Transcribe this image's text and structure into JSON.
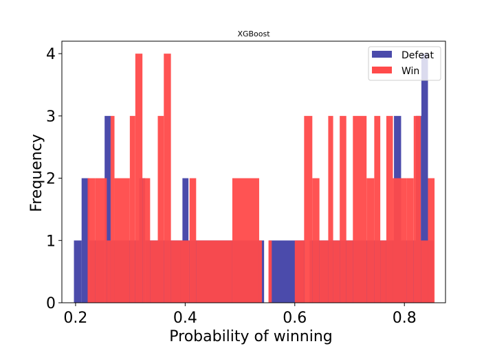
{
  "chart_data": {
    "type": "bar",
    "title": "XGBoost",
    "xlabel": "Probability of winning",
    "ylabel": "Frequency",
    "xlim": [
      0.175,
      0.875
    ],
    "ylim": [
      0,
      4.2
    ],
    "xticks": [
      0.2,
      0.4,
      0.6,
      0.8
    ],
    "xtick_labels": [
      "0.2",
      "0.4",
      "0.6",
      "0.8"
    ],
    "yticks": [
      0,
      1,
      2,
      3,
      4
    ],
    "ytick_labels": [
      "0",
      "1",
      "2",
      "3",
      "4"
    ],
    "legend_position": "top-right",
    "grid": false,
    "series": [
      {
        "name": "Defeat",
        "color": "#4b4bab",
        "bins": [
          {
            "x0": 0.197,
            "x1": 0.211,
            "count": 1
          },
          {
            "x0": 0.211,
            "x1": 0.225,
            "count": 2
          },
          {
            "x0": 0.225,
            "x1": 0.253,
            "count": 1
          },
          {
            "x0": 0.253,
            "x1": 0.264,
            "count": 3
          },
          {
            "x0": 0.264,
            "x1": 0.316,
            "count": 1
          },
          {
            "x0": 0.316,
            "x1": 0.327,
            "count": 2
          },
          {
            "x0": 0.327,
            "x1": 0.395,
            "count": 1
          },
          {
            "x0": 0.395,
            "x1": 0.406,
            "count": 2
          },
          {
            "x0": 0.406,
            "x1": 0.544,
            "count": 1
          },
          {
            "x0": 0.544,
            "x1": 0.553,
            "count": 0
          },
          {
            "x0": 0.553,
            "x1": 0.618,
            "count": 1
          },
          {
            "x0": 0.618,
            "x1": 0.627,
            "count": 0
          },
          {
            "x0": 0.627,
            "x1": 0.781,
            "count": 1
          },
          {
            "x0": 0.781,
            "x1": 0.794,
            "count": 3
          },
          {
            "x0": 0.794,
            "x1": 0.821,
            "count": 1
          },
          {
            "x0": 0.821,
            "x1": 0.831,
            "count": 3
          },
          {
            "x0": 0.831,
            "x1": 0.843,
            "count": 4
          },
          {
            "x0": 0.843,
            "x1": 0.853,
            "count": 1
          }
        ]
      },
      {
        "name": "Win",
        "color": "#ff4a4a",
        "bins": [
          {
            "x0": 0.222,
            "x1": 0.236,
            "count": 2
          },
          {
            "x0": 0.236,
            "x1": 0.257,
            "count": 2
          },
          {
            "x0": 0.257,
            "x1": 0.264,
            "count": 1
          },
          {
            "x0": 0.264,
            "x1": 0.271,
            "count": 3
          },
          {
            "x0": 0.271,
            "x1": 0.299,
            "count": 2
          },
          {
            "x0": 0.299,
            "x1": 0.309,
            "count": 3
          },
          {
            "x0": 0.309,
            "x1": 0.322,
            "count": 4
          },
          {
            "x0": 0.322,
            "x1": 0.336,
            "count": 2
          },
          {
            "x0": 0.336,
            "x1": 0.35,
            "count": 1
          },
          {
            "x0": 0.35,
            "x1": 0.361,
            "count": 3
          },
          {
            "x0": 0.361,
            "x1": 0.374,
            "count": 4
          },
          {
            "x0": 0.374,
            "x1": 0.392,
            "count": 1
          },
          {
            "x0": 0.392,
            "x1": 0.408,
            "count": 1
          },
          {
            "x0": 0.408,
            "x1": 0.42,
            "count": 2
          },
          {
            "x0": 0.42,
            "x1": 0.486,
            "count": 1
          },
          {
            "x0": 0.486,
            "x1": 0.535,
            "count": 2
          },
          {
            "x0": 0.535,
            "x1": 0.54,
            "count": 1
          },
          {
            "x0": 0.552,
            "x1": 0.558,
            "count": 1
          },
          {
            "x0": 0.578,
            "x1": 0.6,
            "count": 0
          },
          {
            "x0": 0.6,
            "x1": 0.617,
            "count": 1
          },
          {
            "x0": 0.617,
            "x1": 0.632,
            "count": 3
          },
          {
            "x0": 0.632,
            "x1": 0.645,
            "count": 2
          },
          {
            "x0": 0.645,
            "x1": 0.661,
            "count": 1
          },
          {
            "x0": 0.661,
            "x1": 0.67,
            "count": 3
          },
          {
            "x0": 0.67,
            "x1": 0.682,
            "count": 1
          },
          {
            "x0": 0.682,
            "x1": 0.694,
            "count": 3
          },
          {
            "x0": 0.694,
            "x1": 0.706,
            "count": 1
          },
          {
            "x0": 0.706,
            "x1": 0.731,
            "count": 3
          },
          {
            "x0": 0.731,
            "x1": 0.745,
            "count": 2
          },
          {
            "x0": 0.745,
            "x1": 0.756,
            "count": 3
          },
          {
            "x0": 0.756,
            "x1": 0.767,
            "count": 1
          },
          {
            "x0": 0.767,
            "x1": 0.779,
            "count": 3
          },
          {
            "x0": 0.779,
            "x1": 0.804,
            "count": 2
          },
          {
            "x0": 0.804,
            "x1": 0.817,
            "count": 2
          },
          {
            "x0": 0.817,
            "x1": 0.83,
            "count": 3
          },
          {
            "x0": 0.83,
            "x1": 0.843,
            "count": 1
          },
          {
            "x0": 0.843,
            "x1": 0.855,
            "count": 2
          }
        ]
      }
    ]
  }
}
